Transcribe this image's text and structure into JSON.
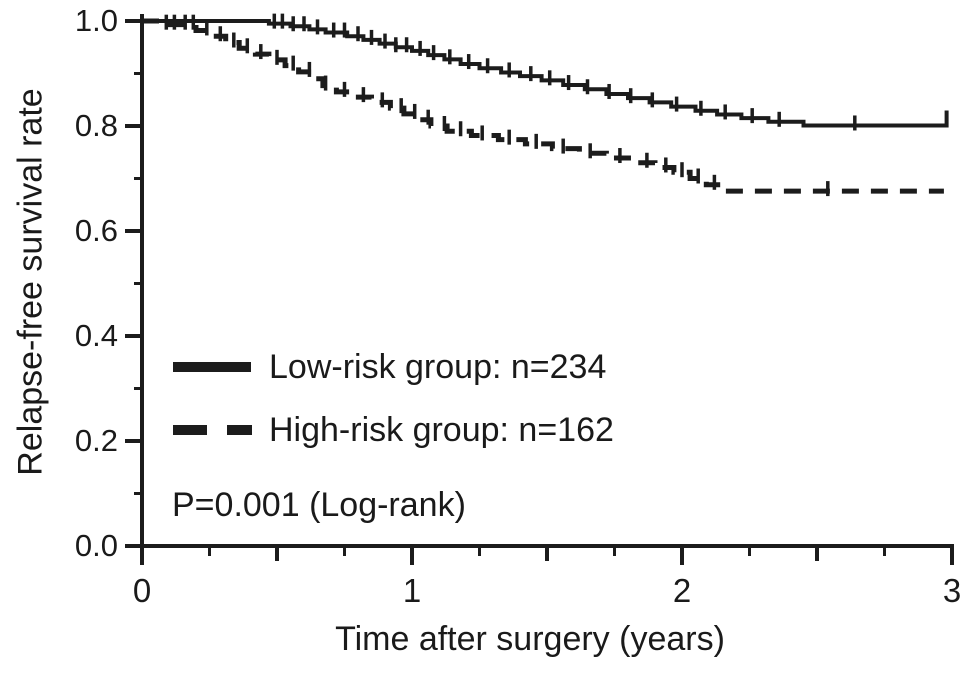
{
  "figure": {
    "background": "#ffffff",
    "ink_color": "#1c1c1c",
    "text_color": "#1a1a1a"
  },
  "chart_data": {
    "type": "line",
    "subtype": "kaplan-meier-step",
    "title": "",
    "xlabel": "Time after surgery (years)",
    "ylabel": "Relapse-free survival rate",
    "xlim": [
      0,
      3
    ],
    "ylim": [
      0.0,
      1.0
    ],
    "grid": false,
    "legend_position": "inside-left-middle",
    "annotation": "P=0.001 (Log-rank)",
    "x_ticks": [
      {
        "value": 0,
        "label": "0"
      },
      {
        "value": 1,
        "label": "1"
      },
      {
        "value": 2,
        "label": "2"
      },
      {
        "value": 3,
        "label": "3"
      }
    ],
    "x_half_ticks": [
      0.5,
      1.5,
      2.5
    ],
    "x_quarter_ticks": [
      0.25,
      0.75,
      1.25,
      1.75,
      2.25,
      2.75
    ],
    "y_ticks": [
      {
        "value": 0.0,
        "label": "0.0"
      },
      {
        "value": 0.2,
        "label": "0.2"
      },
      {
        "value": 0.4,
        "label": "0.4"
      },
      {
        "value": 0.6,
        "label": "0.6"
      },
      {
        "value": 0.8,
        "label": "0.8"
      },
      {
        "value": 1.0,
        "label": "1.0"
      }
    ],
    "y_minor_ticks": [
      0.1,
      0.3,
      0.5,
      0.7,
      0.9
    ],
    "series": [
      {
        "name": "Low-risk group: n=234",
        "line_style": "solid",
        "color": "#1c1c1c",
        "end_time": 2.98,
        "terminal_tick": true,
        "steps": [
          [
            0,
            1.0
          ],
          [
            0.47,
            0.995
          ],
          [
            0.55,
            0.99
          ],
          [
            0.62,
            0.984
          ],
          [
            0.68,
            0.978
          ],
          [
            0.76,
            0.971
          ],
          [
            0.82,
            0.964
          ],
          [
            0.88,
            0.957
          ],
          [
            0.94,
            0.95
          ],
          [
            1.0,
            0.943
          ],
          [
            1.06,
            0.935
          ],
          [
            1.12,
            0.927
          ],
          [
            1.18,
            0.918
          ],
          [
            1.25,
            0.91
          ],
          [
            1.33,
            0.902
          ],
          [
            1.4,
            0.895
          ],
          [
            1.48,
            0.887
          ],
          [
            1.56,
            0.878
          ],
          [
            1.64,
            0.87
          ],
          [
            1.72,
            0.861
          ],
          [
            1.8,
            0.853
          ],
          [
            1.88,
            0.845
          ],
          [
            1.96,
            0.837
          ],
          [
            2.05,
            0.829
          ],
          [
            2.13,
            0.822
          ],
          [
            2.22,
            0.815
          ],
          [
            2.32,
            0.808
          ],
          [
            2.45,
            0.801
          ]
        ],
        "censor_times": [
          0.49,
          0.52,
          0.56,
          0.6,
          0.65,
          0.71,
          0.75,
          0.8,
          0.85,
          0.9,
          0.94,
          0.98,
          1.03,
          1.08,
          1.14,
          1.21,
          1.28,
          1.36,
          1.44,
          1.51,
          1.58,
          1.65,
          1.73,
          1.81,
          1.89,
          1.98,
          2.07,
          2.16,
          2.26,
          2.36,
          2.64
        ]
      },
      {
        "name": "High-risk group: n=162",
        "line_style": "dashed",
        "color": "#1c1c1c",
        "end_time": 2.97,
        "terminal_tick": false,
        "steps": [
          [
            0,
            1.0
          ],
          [
            0.07,
            0.993
          ],
          [
            0.2,
            0.982
          ],
          [
            0.26,
            0.971
          ],
          [
            0.31,
            0.959
          ],
          [
            0.36,
            0.948
          ],
          [
            0.42,
            0.937
          ],
          [
            0.47,
            0.926
          ],
          [
            0.53,
            0.915
          ],
          [
            0.58,
            0.903
          ],
          [
            0.63,
            0.89
          ],
          [
            0.67,
            0.877
          ],
          [
            0.72,
            0.865
          ],
          [
            0.78,
            0.855
          ],
          [
            0.85,
            0.845
          ],
          [
            0.92,
            0.834
          ],
          [
            0.97,
            0.823
          ],
          [
            1.02,
            0.812
          ],
          [
            1.07,
            0.8
          ],
          [
            1.13,
            0.79
          ],
          [
            1.22,
            0.782
          ],
          [
            1.32,
            0.774
          ],
          [
            1.42,
            0.766
          ],
          [
            1.52,
            0.757
          ],
          [
            1.62,
            0.748
          ],
          [
            1.72,
            0.739
          ],
          [
            1.82,
            0.73
          ],
          [
            1.9,
            0.721
          ],
          [
            1.97,
            0.712
          ],
          [
            2.03,
            0.7
          ],
          [
            2.09,
            0.688
          ],
          [
            2.15,
            0.676
          ]
        ],
        "censor_times": [
          0.09,
          0.12,
          0.16,
          0.19,
          0.24,
          0.29,
          0.34,
          0.39,
          0.44,
          0.5,
          0.56,
          0.62,
          0.68,
          0.75,
          0.82,
          0.89,
          0.96,
          1.01,
          1.06,
          1.12,
          1.18,
          1.26,
          1.36,
          1.46,
          1.56,
          1.66,
          1.77,
          1.87,
          1.94,
          2.0,
          2.06,
          2.12,
          2.54
        ]
      }
    ]
  }
}
